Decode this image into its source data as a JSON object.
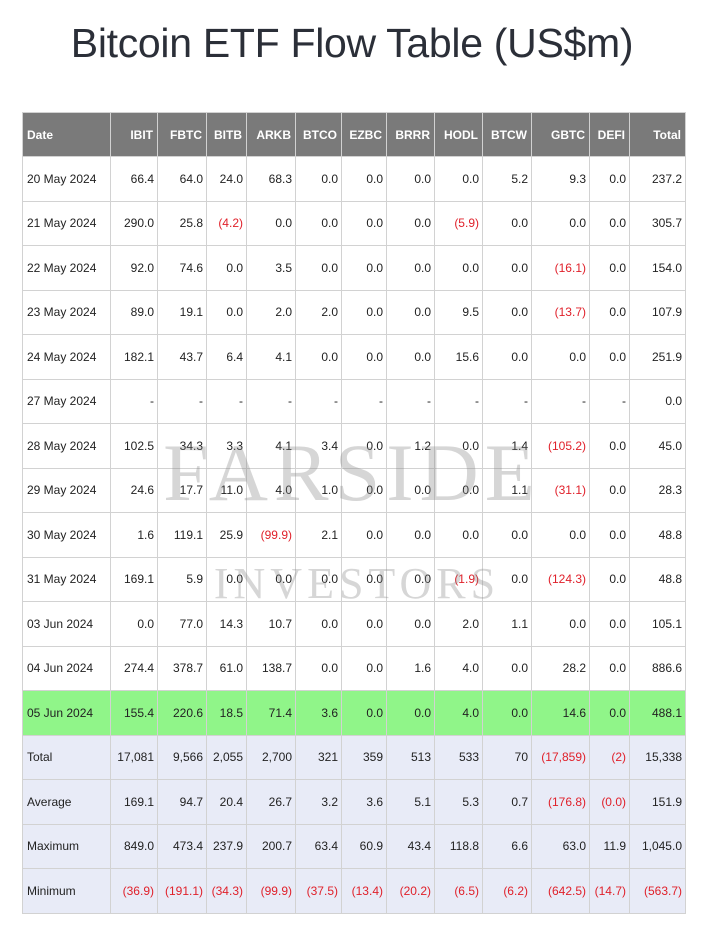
{
  "title": "Bitcoin ETF Flow Table (US$m)",
  "colors": {
    "header_bg": "#7a7a7a",
    "highlight_row": "#90f589",
    "summary_row": "#e8ebf7",
    "negative_text": "#e0202a"
  },
  "watermark": {
    "line1": "FARSIDE",
    "line2": "INVESTORS"
  },
  "columns": [
    "Date",
    "IBIT",
    "FBTC",
    "BITB",
    "ARKB",
    "BTCO",
    "EZBC",
    "BRRR",
    "HODL",
    "BTCW",
    "GBTC",
    "DEFI",
    "Total"
  ],
  "rows": [
    {
      "date": "20 May 2024",
      "cells": [
        "66.4",
        "64.0",
        "24.0",
        "68.3",
        "0.0",
        "0.0",
        "0.0",
        "0.0",
        "5.2",
        "9.3",
        "0.0",
        "237.2"
      ]
    },
    {
      "date": "21 May 2024",
      "cells": [
        "290.0",
        "25.8",
        "(4.2)",
        "0.0",
        "0.0",
        "0.0",
        "0.0",
        "(5.9)",
        "0.0",
        "0.0",
        "0.0",
        "305.7"
      ]
    },
    {
      "date": "22 May 2024",
      "cells": [
        "92.0",
        "74.6",
        "0.0",
        "3.5",
        "0.0",
        "0.0",
        "0.0",
        "0.0",
        "0.0",
        "(16.1)",
        "0.0",
        "154.0"
      ]
    },
    {
      "date": "23 May 2024",
      "cells": [
        "89.0",
        "19.1",
        "0.0",
        "2.0",
        "2.0",
        "0.0",
        "0.0",
        "9.5",
        "0.0",
        "(13.7)",
        "0.0",
        "107.9"
      ]
    },
    {
      "date": "24 May 2024",
      "cells": [
        "182.1",
        "43.7",
        "6.4",
        "4.1",
        "0.0",
        "0.0",
        "0.0",
        "15.6",
        "0.0",
        "0.0",
        "0.0",
        "251.9"
      ]
    },
    {
      "date": "27 May 2024",
      "cells": [
        "-",
        "-",
        "-",
        "-",
        "-",
        "-",
        "-",
        "-",
        "-",
        "-",
        "-",
        "0.0"
      ]
    },
    {
      "date": "28 May 2024",
      "cells": [
        "102.5",
        "34.3",
        "3.3",
        "4.1",
        "3.4",
        "0.0",
        "1.2",
        "0.0",
        "1.4",
        "(105.2)",
        "0.0",
        "45.0"
      ]
    },
    {
      "date": "29 May 2024",
      "cells": [
        "24.6",
        "17.7",
        "11.0",
        "4.0",
        "1.0",
        "0.0",
        "0.0",
        "0.0",
        "1.1",
        "(31.1)",
        "0.0",
        "28.3"
      ]
    },
    {
      "date": "30 May 2024",
      "cells": [
        "1.6",
        "119.1",
        "25.9",
        "(99.9)",
        "2.1",
        "0.0",
        "0.0",
        "0.0",
        "0.0",
        "0.0",
        "0.0",
        "48.8"
      ]
    },
    {
      "date": "31 May 2024",
      "cells": [
        "169.1",
        "5.9",
        "0.0",
        "0.0",
        "0.0",
        "0.0",
        "0.0",
        "(1.9)",
        "0.0",
        "(124.3)",
        "0.0",
        "48.8"
      ]
    },
    {
      "date": "03 Jun 2024",
      "cells": [
        "0.0",
        "77.0",
        "14.3",
        "10.7",
        "0.0",
        "0.0",
        "0.0",
        "2.0",
        "1.1",
        "0.0",
        "0.0",
        "105.1"
      ]
    },
    {
      "date": "04 Jun 2024",
      "cells": [
        "274.4",
        "378.7",
        "61.0",
        "138.7",
        "0.0",
        "0.0",
        "1.6",
        "4.0",
        "0.0",
        "28.2",
        "0.0",
        "886.6"
      ]
    },
    {
      "date": "05 Jun 2024",
      "cells": [
        "155.4",
        "220.6",
        "18.5",
        "71.4",
        "3.6",
        "0.0",
        "0.0",
        "4.0",
        "0.0",
        "14.6",
        "0.0",
        "488.1"
      ],
      "highlight": true
    }
  ],
  "summary": [
    {
      "label": "Total",
      "cells": [
        "17,081",
        "9,566",
        "2,055",
        "2,700",
        "321",
        "359",
        "513",
        "533",
        "70",
        "(17,859)",
        "(2)",
        "15,338"
      ]
    },
    {
      "label": "Average",
      "cells": [
        "169.1",
        "94.7",
        "20.4",
        "26.7",
        "3.2",
        "3.6",
        "5.1",
        "5.3",
        "0.7",
        "(176.8)",
        "(0.0)",
        "151.9"
      ]
    },
    {
      "label": "Maximum",
      "cells": [
        "849.0",
        "473.4",
        "237.9",
        "200.7",
        "63.4",
        "60.9",
        "43.4",
        "118.8",
        "6.6",
        "63.0",
        "11.9",
        "1,045.0"
      ]
    },
    {
      "label": "Minimum",
      "cells": [
        "(36.9)",
        "(191.1)",
        "(34.3)",
        "(99.9)",
        "(37.5)",
        "(13.4)",
        "(20.2)",
        "(6.5)",
        "(6.2)",
        "(642.5)",
        "(14.7)",
        "(563.7)"
      ]
    }
  ]
}
